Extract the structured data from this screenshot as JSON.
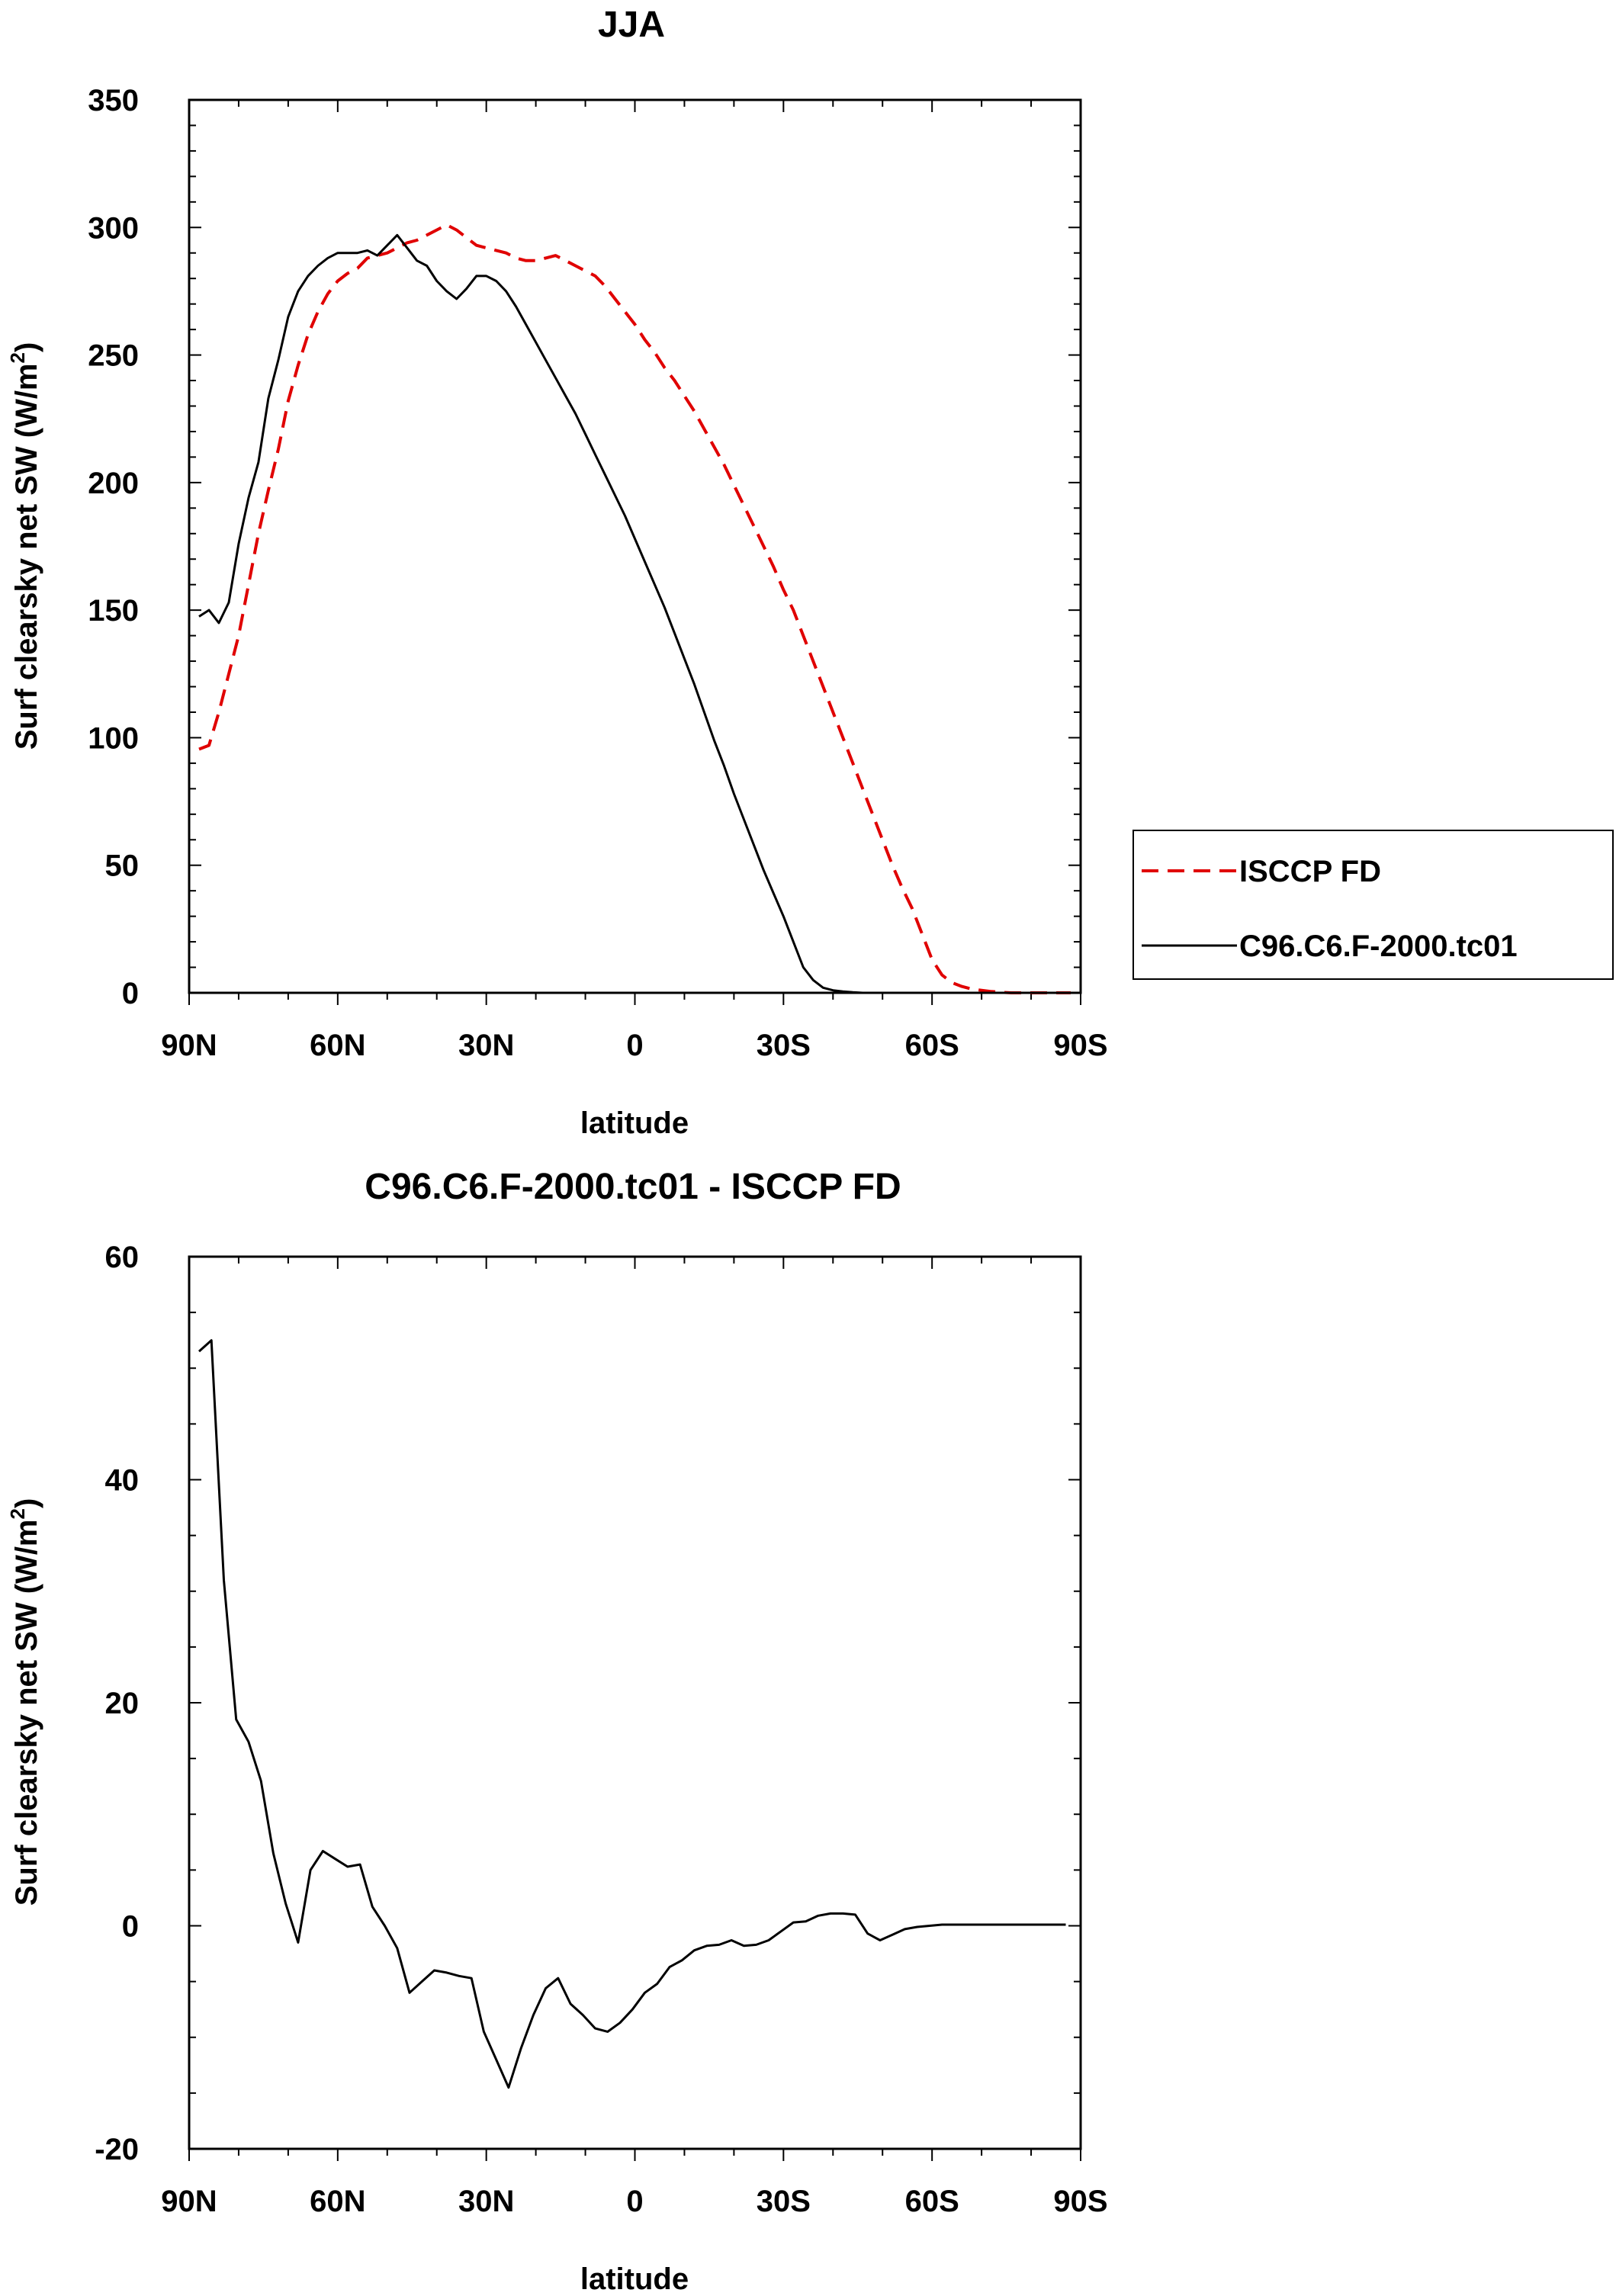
{
  "chart_data": [
    {
      "type": "line",
      "title": "JJA",
      "xlabel": "latitude",
      "ylabel": "Surf clearsky net SW (W/m",
      "ylabel_sup": "2",
      "ylabel_end": ")",
      "xlim": [
        90,
        -90
      ],
      "ylim": [
        0,
        350
      ],
      "yticks": [
        0,
        50,
        100,
        150,
        200,
        250,
        300,
        350
      ],
      "yminor": 10,
      "xticks": [
        90,
        60,
        30,
        0,
        -30,
        -60,
        -90
      ],
      "xtick_labels": [
        "90N",
        "60N",
        "30N",
        "0",
        "30S",
        "60S",
        "90S"
      ],
      "xminor": 10,
      "legend": {
        "position": "right",
        "entries": [
          "ISCCP FD",
          "C96.C6.F-2000.tc01"
        ]
      },
      "series": [
        {
          "name": "ISCCP FD",
          "color": "#e00000",
          "dash": "dashed",
          "x": [
            88,
            86,
            84,
            82,
            80,
            78,
            76,
            74,
            72,
            70,
            68,
            66,
            64,
            62,
            60,
            58,
            56,
            54,
            52,
            50,
            48,
            46,
            44,
            42,
            40,
            38,
            36,
            34,
            32,
            30,
            28,
            26,
            24,
            22,
            20,
            18,
            16,
            14,
            12,
            10,
            8,
            6,
            4,
            2,
            0,
            -2,
            -4,
            -6,
            -8,
            -10,
            -12,
            -14,
            -16,
            -18,
            -20,
            -22,
            -24,
            -26,
            -28,
            -30,
            -32,
            -34,
            -36,
            -38,
            -40,
            -42,
            -44,
            -46,
            -48,
            -50,
            -52,
            -54,
            -56,
            -58,
            -60,
            -62,
            -64,
            -66,
            -68,
            -70,
            -72,
            -74,
            -76,
            -78,
            -80,
            -82,
            -84,
            -86,
            -88
          ],
          "values": [
            95.5,
            97,
            110,
            125,
            140,
            160,
            180,
            197,
            213,
            232,
            246,
            258,
            267,
            274,
            279,
            282,
            284,
            288,
            289,
            290,
            292,
            294,
            295,
            297,
            299,
            301,
            299,
            296,
            293,
            292,
            291,
            290,
            288,
            287,
            287,
            288,
            289,
            287,
            285,
            283,
            281,
            277,
            272,
            267,
            262,
            256,
            251,
            245,
            240,
            234,
            228,
            221,
            214,
            207,
            199,
            191,
            183,
            175,
            167,
            158,
            150,
            140,
            130,
            120,
            110,
            100,
            90,
            80,
            70,
            60,
            50,
            41,
            33,
            23,
            13,
            7,
            4,
            2.5,
            1.5,
            1,
            0.5,
            0.2,
            0,
            0,
            0,
            0,
            0,
            0,
            0
          ]
        },
        {
          "name": "C96.C6.F-2000.tc01",
          "color": "#000000",
          "dash": "solid",
          "x": [
            88,
            86,
            84,
            82,
            80,
            78,
            76,
            74,
            72,
            70,
            68,
            66,
            64,
            62,
            60,
            58,
            56,
            54,
            52,
            50,
            48,
            46,
            44,
            42,
            40,
            38,
            36,
            34,
            32,
            30,
            28,
            26,
            24,
            22,
            20,
            18,
            16,
            14,
            12,
            10,
            8,
            6,
            4,
            2,
            0,
            -2,
            -4,
            -6,
            -8,
            -10,
            -12,
            -14,
            -16,
            -18,
            -20,
            -22,
            -24,
            -26,
            -28,
            -30,
            -32,
            -34,
            -36,
            -38,
            -40,
            -42,
            -44,
            -46,
            -48,
            -50,
            -52,
            -54,
            -56,
            -58,
            -60,
            -62,
            -64,
            -66,
            -68,
            -70,
            -72,
            -74,
            -76,
            -78,
            -80,
            -82,
            -84,
            -86,
            -88
          ],
          "values": [
            147.5,
            150,
            145,
            153,
            176,
            194,
            208,
            233,
            248,
            265,
            275,
            281,
            285,
            288,
            290,
            290,
            290,
            291,
            289,
            293,
            297,
            292,
            287,
            285,
            279,
            275,
            272,
            276,
            281,
            281,
            279,
            275,
            269,
            262,
            255,
            248,
            241,
            234,
            227,
            219,
            211,
            203,
            195,
            187,
            178,
            169,
            160,
            151,
            141,
            131,
            121,
            110,
            99,
            89,
            78,
            68,
            58,
            48,
            39,
            30,
            20,
            10,
            5,
            2,
            1,
            0.5,
            0.2,
            0,
            0,
            0,
            0,
            0,
            0,
            0,
            0,
            0,
            0,
            0,
            0,
            0,
            0,
            0,
            0,
            0,
            0,
            0,
            0,
            0,
            0
          ]
        }
      ]
    },
    {
      "type": "line",
      "title": "C96.C6.F-2000.tc01 - ISCCP FD",
      "xlabel": "latitude",
      "ylabel": "Surf clearsky net SW (W/m",
      "ylabel_sup": "2",
      "ylabel_end": ")",
      "xlim": [
        90,
        -90
      ],
      "ylim": [
        -20,
        60
      ],
      "yticks": [
        -20,
        0,
        20,
        40,
        60
      ],
      "yminor": 5,
      "xticks": [
        90,
        60,
        30,
        0,
        -30,
        -60,
        -90
      ],
      "xtick_labels": [
        "90N",
        "60N",
        "30N",
        "0",
        "30S",
        "60S",
        "90S"
      ],
      "xminor": 10,
      "series": [
        {
          "name": "C96.C6.F-2000.tc01 - ISCCP FD",
          "color": "#000000",
          "dash": "solid",
          "x": [
            88,
            85.5,
            83,
            80.5,
            78,
            75.5,
            73,
            70.5,
            68,
            65.5,
            63,
            60.5,
            58,
            55.5,
            53,
            50.5,
            48,
            45.5,
            43,
            40.5,
            38,
            35.5,
            33,
            30.5,
            28,
            25.5,
            23,
            20.5,
            18,
            15.5,
            13,
            10.5,
            8,
            5.5,
            3,
            0.5,
            -2,
            -4.5,
            -7,
            -9.5,
            -12,
            -14.5,
            -17,
            -19.5,
            -22,
            -24.5,
            -27,
            -29.5,
            -32,
            -34.5,
            -37,
            -39.5,
            -42,
            -44.5,
            -47,
            -49.5,
            -52,
            -54.5,
            -57,
            -59.5,
            -62,
            -64.5,
            -67,
            -69.5,
            -72,
            -74.5,
            -77,
            -79.5,
            -82,
            -84.5,
            -87
          ],
          "values": [
            51.5,
            52.5,
            31,
            18.5,
            16.5,
            13,
            6.5,
            2,
            -1.5,
            5,
            6.7,
            6,
            5.3,
            5.5,
            1.7,
            0,
            -2,
            -6,
            -5,
            -4,
            -4.2,
            -4.5,
            -4.7,
            -9.5,
            -12,
            -14.5,
            -11,
            -8,
            -5.6,
            -4.7,
            -7,
            -8,
            -9.2,
            -9.5,
            -8.7,
            -7.5,
            -6,
            -5.2,
            -3.7,
            -3.1,
            -2.2,
            -1.8,
            -1.7,
            -1.3,
            -1.8,
            -1.7,
            -1.3,
            -0.5,
            0.3,
            0.4,
            0.9,
            1.1,
            1.1,
            1,
            -0.7,
            -1.3,
            -0.8,
            -0.3,
            -0.1,
            0,
            0.1,
            0.1,
            0.1,
            0.1,
            0.1,
            0.1,
            0.1,
            0.1,
            0.1,
            0.1,
            0.1
          ]
        }
      ]
    }
  ]
}
